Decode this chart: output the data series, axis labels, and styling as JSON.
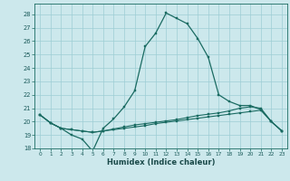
{
  "title": "",
  "xlabel": "Humidex (Indice chaleur)",
  "bg_color": "#cce8ec",
  "grid_color": "#9ecdd4",
  "line_color": "#1a6b62",
  "xlim": [
    -0.5,
    23.5
  ],
  "ylim": [
    18,
    28.8
  ],
  "yticks": [
    18,
    19,
    20,
    21,
    22,
    23,
    24,
    25,
    26,
    27,
    28
  ],
  "xticks": [
    0,
    1,
    2,
    3,
    4,
    5,
    6,
    7,
    8,
    9,
    10,
    11,
    12,
    13,
    14,
    15,
    16,
    17,
    18,
    19,
    20,
    21,
    22,
    23
  ],
  "line1_x": [
    0,
    1,
    2,
    3,
    4,
    5,
    6,
    7,
    8,
    9,
    10,
    11,
    12,
    13,
    14,
    15,
    16,
    17,
    18,
    19,
    20,
    21,
    22,
    23
  ],
  "line1_y": [
    20.5,
    19.9,
    19.5,
    19.0,
    18.7,
    17.8,
    19.5,
    20.2,
    21.1,
    22.3,
    25.6,
    26.6,
    28.1,
    27.7,
    27.3,
    26.2,
    24.8,
    22.0,
    21.5,
    21.2,
    21.2,
    20.9,
    20.0,
    19.3
  ],
  "line2_x": [
    0,
    1,
    2,
    3,
    4,
    5,
    6,
    7,
    8,
    9,
    10,
    11,
    12,
    13,
    14,
    15,
    16,
    17,
    18,
    19,
    20,
    21,
    22,
    23
  ],
  "line2_y": [
    20.5,
    19.9,
    19.5,
    19.4,
    19.3,
    19.2,
    19.3,
    19.4,
    19.5,
    19.6,
    19.7,
    19.85,
    19.95,
    20.05,
    20.15,
    20.25,
    20.35,
    20.45,
    20.55,
    20.65,
    20.75,
    20.85,
    20.0,
    19.3
  ],
  "line3_x": [
    0,
    1,
    2,
    3,
    4,
    5,
    6,
    7,
    8,
    9,
    10,
    11,
    12,
    13,
    14,
    15,
    16,
    17,
    18,
    19,
    20,
    21,
    22,
    23
  ],
  "line3_y": [
    20.5,
    19.9,
    19.5,
    19.4,
    19.3,
    19.2,
    19.3,
    19.45,
    19.6,
    19.75,
    19.85,
    19.95,
    20.05,
    20.15,
    20.3,
    20.45,
    20.55,
    20.65,
    20.8,
    21.0,
    21.1,
    21.0,
    20.0,
    19.3
  ]
}
